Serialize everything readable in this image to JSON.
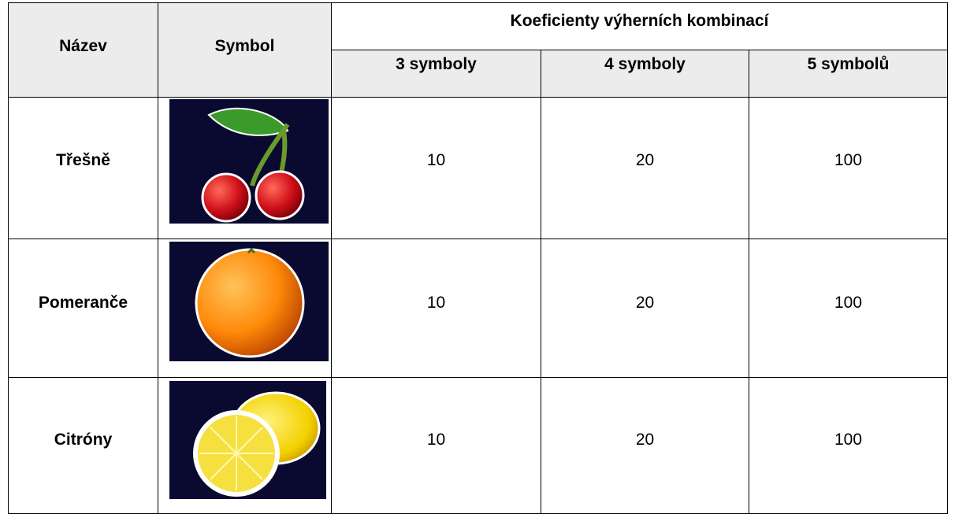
{
  "table": {
    "headers": {
      "name": "Název",
      "symbol": "Symbol",
      "group": "Koeficienty výherních kombinací",
      "columns": [
        "3 symboly",
        "4 symboly",
        "5 symbolů"
      ]
    },
    "rows": [
      {
        "name": "Třešně",
        "values": [
          10,
          20,
          100
        ]
      },
      {
        "name": "Pomeranče",
        "values": [
          10,
          20,
          100
        ]
      },
      {
        "name": "Citróny",
        "values": [
          10,
          20,
          100
        ]
      }
    ]
  }
}
